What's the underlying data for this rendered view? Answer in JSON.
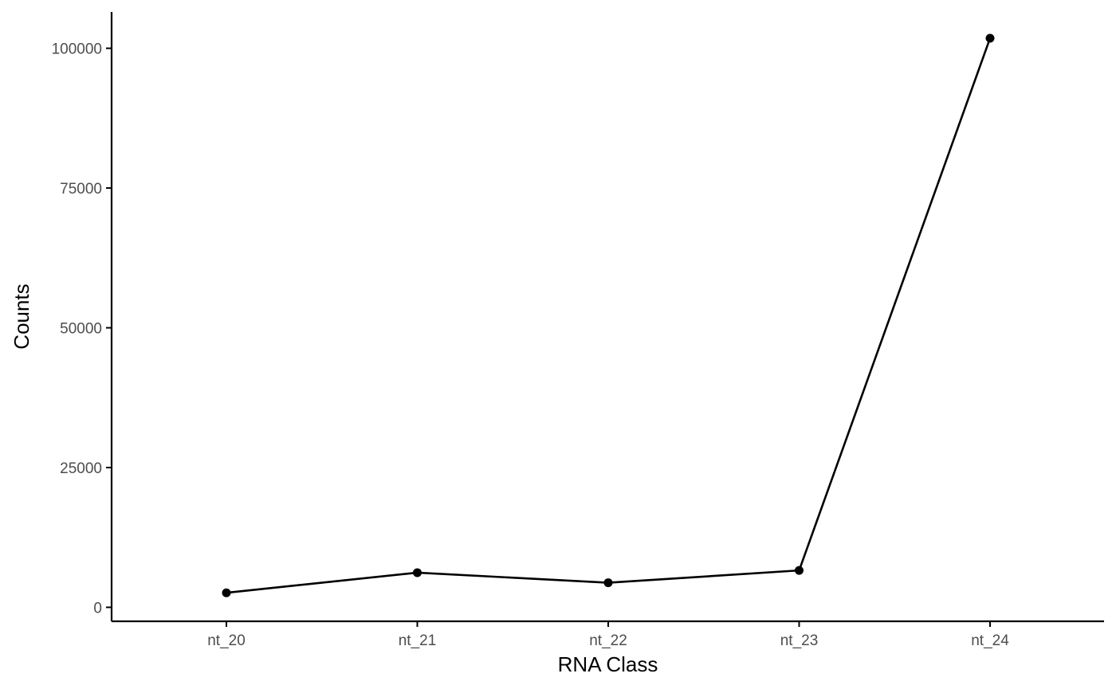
{
  "chart_data": {
    "type": "line",
    "xlabel": "RNA Class",
    "ylabel": "Counts",
    "categories": [
      "nt_20",
      "nt_21",
      "nt_22",
      "nt_23",
      "nt_24"
    ],
    "series": [
      {
        "values": [
          2600,
          6200,
          4400,
          6600,
          101800
        ],
        "color": "#000000"
      }
    ],
    "yticks": [
      0,
      25000,
      50000,
      75000,
      100000
    ],
    "ylim": [
      -2500,
      106500
    ],
    "grid": false,
    "legend": "none",
    "points": true,
    "colors": {
      "axis": "#000000",
      "tick_label": "#4d4d4d",
      "line": "#000000",
      "background": "#ffffff"
    }
  }
}
